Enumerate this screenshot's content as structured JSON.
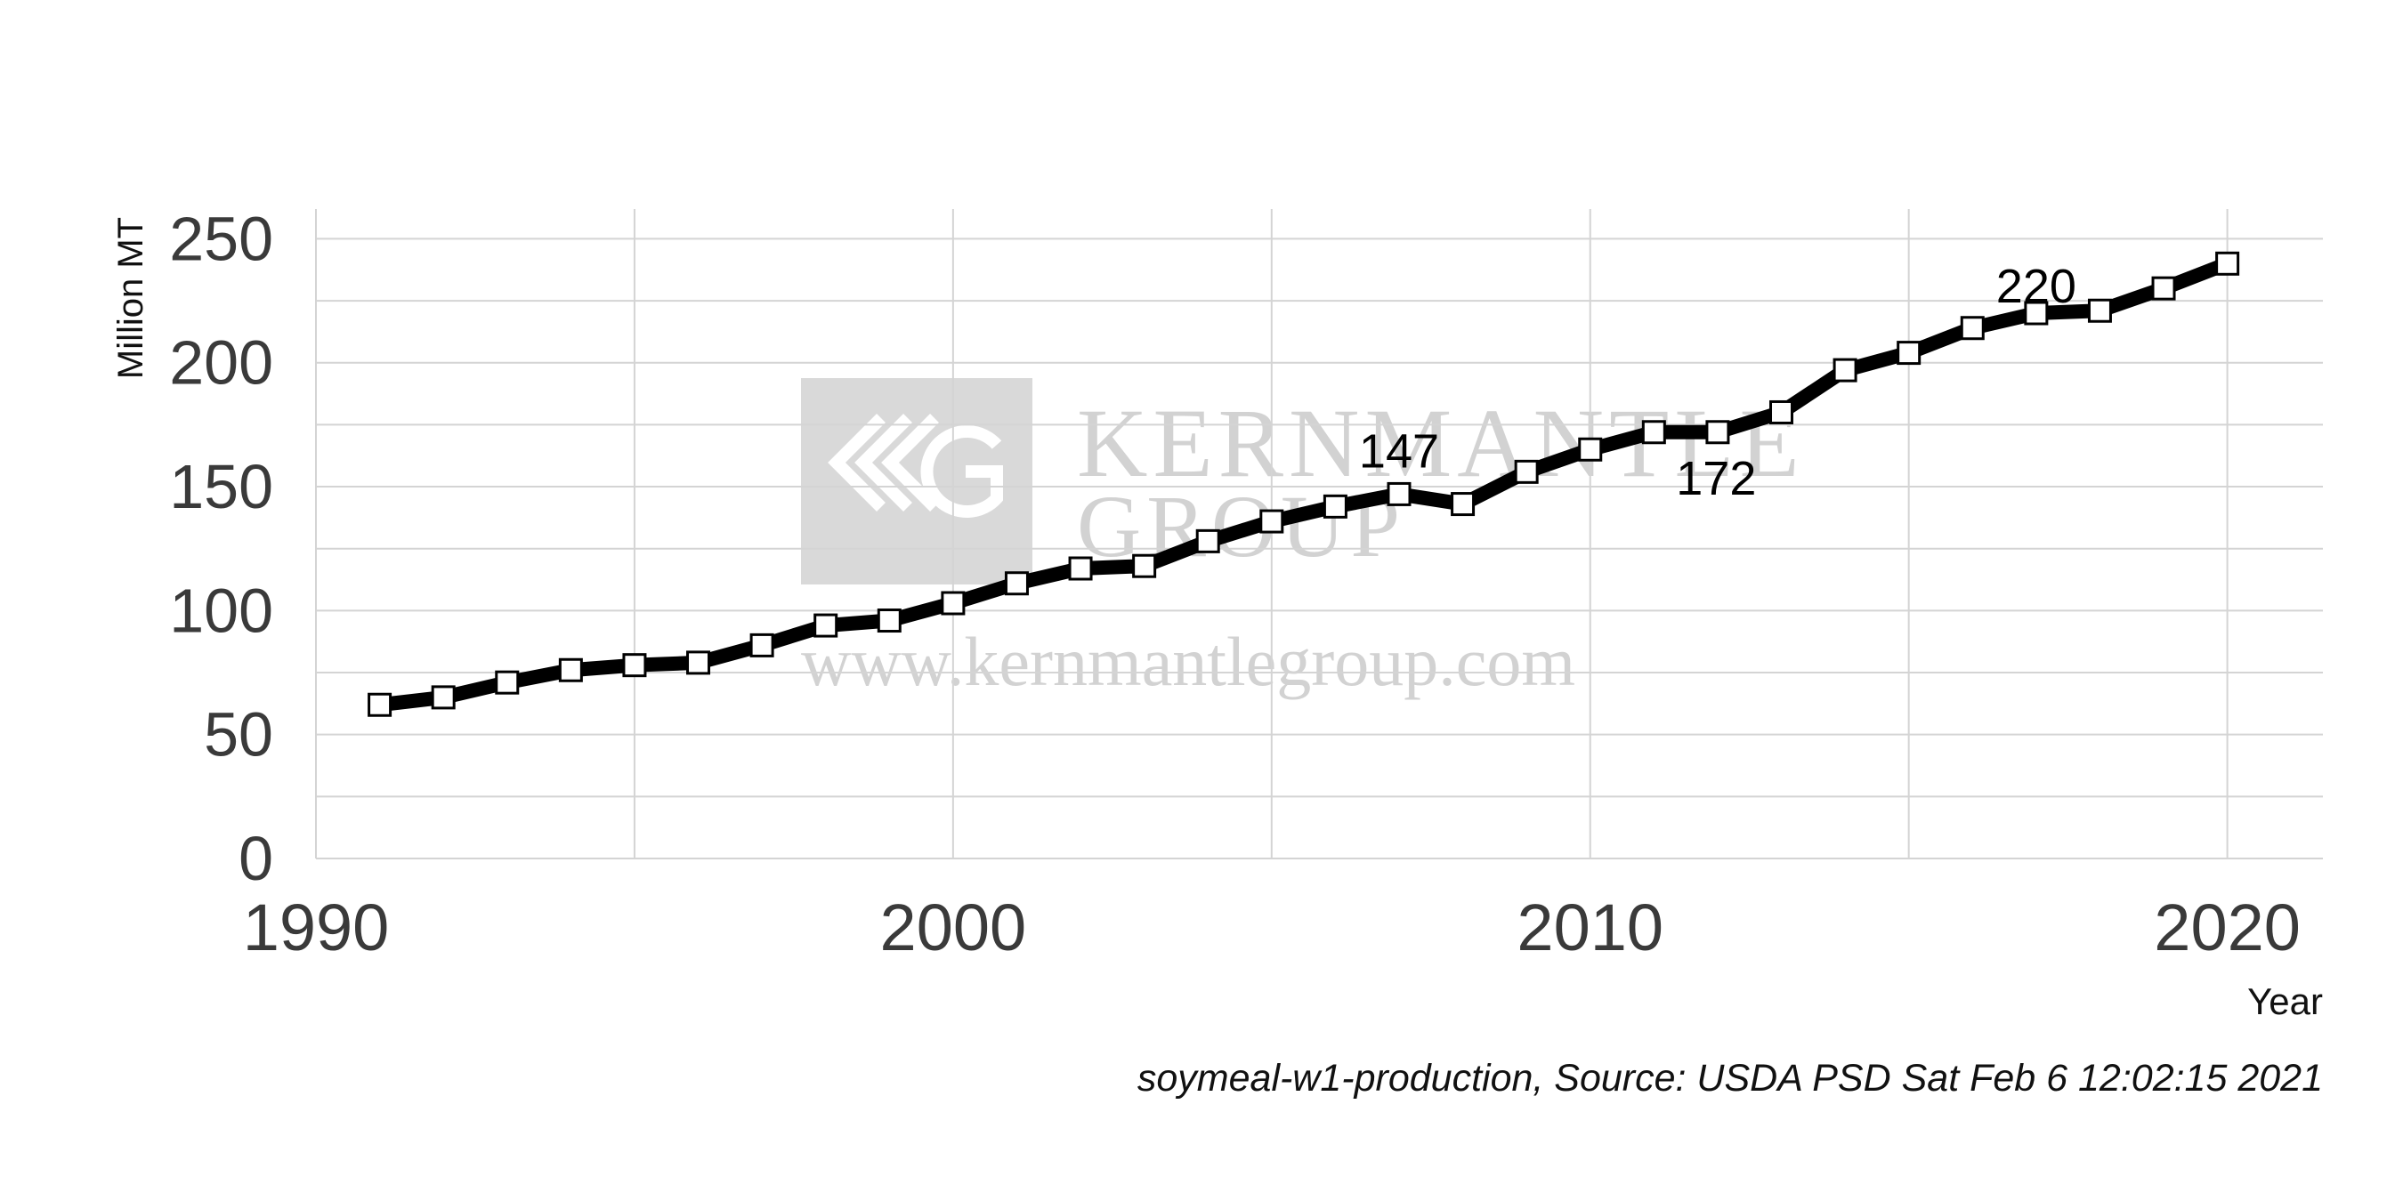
{
  "watermark": {
    "name_line1": "KERNMANTLE",
    "name_line2": "GROUP",
    "url": "www.kernmantlegroup.com"
  },
  "caption": "soymeal-w1-production, Source: USDA PSD Sat Feb  6 12:02:15 2021",
  "chart_data": {
    "type": "line",
    "title": "",
    "xlabel": "Year",
    "ylabel": "Million MT",
    "xlim": [
      1990,
      2021.5
    ],
    "ylim": [
      0,
      262
    ],
    "x_ticks": [
      1990,
      2000,
      2010,
      2020
    ],
    "y_ticks": [
      0,
      50,
      100,
      150,
      200,
      250
    ],
    "grid": true,
    "marker": "square",
    "line_color": "#000000",
    "marker_fill": "#ffffff",
    "x": [
      1991,
      1992,
      1993,
      1994,
      1995,
      1996,
      1997,
      1998,
      1999,
      2000,
      2001,
      2002,
      2003,
      2004,
      2005,
      2006,
      2007,
      2008,
      2009,
      2010,
      2011,
      2012,
      2013,
      2014,
      2015,
      2016,
      2017,
      2018,
      2019,
      2020
    ],
    "y": [
      62,
      65,
      71,
      76,
      78,
      79,
      86,
      94,
      96,
      103,
      111,
      117,
      118,
      128,
      136,
      142,
      147,
      143,
      156,
      165,
      172,
      172,
      180,
      197,
      204,
      214,
      220,
      221,
      230,
      240
    ],
    "annotations": [
      {
        "x": 2007,
        "y": 147,
        "text": "147"
      },
      {
        "x": 2011,
        "y": 172,
        "text": "172"
      },
      {
        "x": 2017,
        "y": 220,
        "text": "220"
      }
    ]
  }
}
